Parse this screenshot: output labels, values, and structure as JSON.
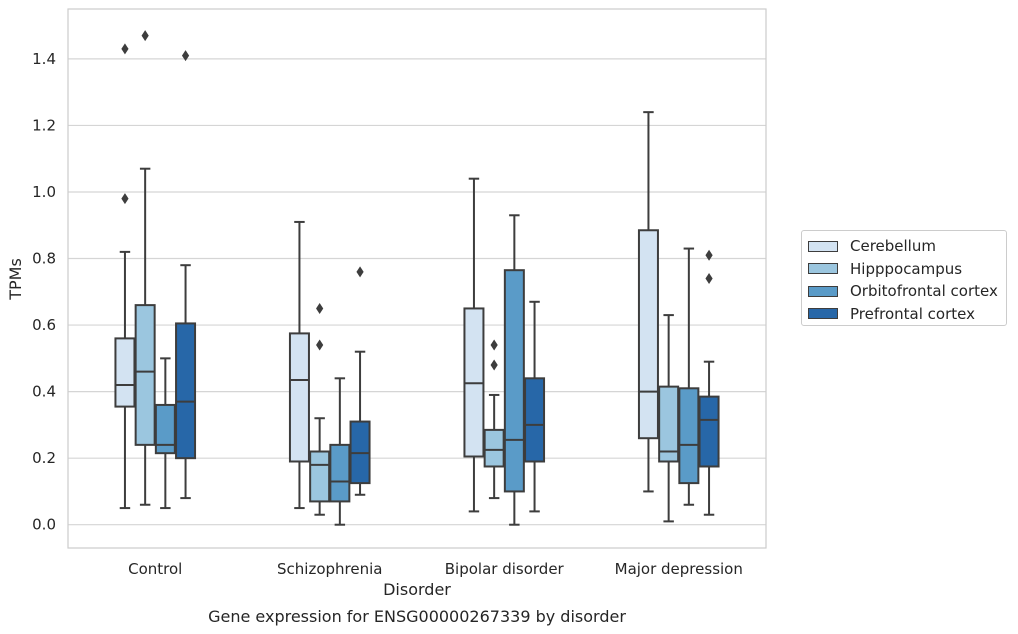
{
  "chart_data": {
    "type": "box",
    "title": "",
    "xlabel": "Disorder",
    "ylabel": "TPMs",
    "caption": "Gene expression for ENSG00000267339 by disorder",
    "ylim": [
      -0.07,
      1.55
    ],
    "yticks": [
      "0.0",
      "0.2",
      "0.4",
      "0.6",
      "0.8",
      "1.0",
      "1.2",
      "1.4"
    ],
    "categories": [
      "Control",
      "Schizophrenia",
      "Bipolar disorder",
      "Major depression"
    ],
    "legend_position": "right",
    "grid": "horizontal",
    "series": [
      {
        "name": "Cerebellum",
        "color": "#d3e3f2",
        "boxes": [
          {
            "whislo": 0.05,
            "q1": 0.355,
            "med": 0.42,
            "q3": 0.56,
            "whishi": 0.82,
            "fliers": [
              0.98,
              1.43
            ]
          },
          {
            "whislo": 0.05,
            "q1": 0.19,
            "med": 0.435,
            "q3": 0.575,
            "whishi": 0.91,
            "fliers": []
          },
          {
            "whislo": 0.04,
            "q1": 0.205,
            "med": 0.425,
            "q3": 0.65,
            "whishi": 1.04,
            "fliers": []
          },
          {
            "whislo": 0.1,
            "q1": 0.26,
            "med": 0.4,
            "q3": 0.885,
            "whishi": 1.24,
            "fliers": []
          }
        ]
      },
      {
        "name": "Hipppocampus",
        "color": "#9bc6df",
        "boxes": [
          {
            "whislo": 0.06,
            "q1": 0.24,
            "med": 0.46,
            "q3": 0.66,
            "whishi": 1.07,
            "fliers": [
              1.47
            ]
          },
          {
            "whislo": 0.03,
            "q1": 0.07,
            "med": 0.18,
            "q3": 0.22,
            "whishi": 0.32,
            "fliers": [
              0.54,
              0.65
            ]
          },
          {
            "whislo": 0.08,
            "q1": 0.175,
            "med": 0.225,
            "q3": 0.285,
            "whishi": 0.39,
            "fliers": [
              0.48,
              0.54
            ]
          },
          {
            "whislo": 0.01,
            "q1": 0.19,
            "med": 0.22,
            "q3": 0.415,
            "whishi": 0.63,
            "fliers": []
          }
        ]
      },
      {
        "name": "Orbitofrontal cortex",
        "color": "#5a9bc8",
        "boxes": [
          {
            "whislo": 0.05,
            "q1": 0.215,
            "med": 0.24,
            "q3": 0.36,
            "whishi": 0.5,
            "fliers": []
          },
          {
            "whislo": 0.0,
            "q1": 0.07,
            "med": 0.13,
            "q3": 0.24,
            "whishi": 0.44,
            "fliers": []
          },
          {
            "whislo": 0.0,
            "q1": 0.1,
            "med": 0.255,
            "q3": 0.765,
            "whishi": 0.93,
            "fliers": []
          },
          {
            "whislo": 0.06,
            "q1": 0.125,
            "med": 0.24,
            "q3": 0.41,
            "whishi": 0.83,
            "fliers": []
          }
        ]
      },
      {
        "name": "Prefrontal cortex",
        "color": "#2767a8",
        "boxes": [
          {
            "whislo": 0.08,
            "q1": 0.2,
            "med": 0.37,
            "q3": 0.605,
            "whishi": 0.78,
            "fliers": [
              1.41
            ]
          },
          {
            "whislo": 0.09,
            "q1": 0.125,
            "med": 0.215,
            "q3": 0.31,
            "whishi": 0.52,
            "fliers": [
              0.76
            ]
          },
          {
            "whislo": 0.04,
            "q1": 0.19,
            "med": 0.3,
            "q3": 0.44,
            "whishi": 0.67,
            "fliers": []
          },
          {
            "whislo": 0.03,
            "q1": 0.175,
            "med": 0.315,
            "q3": 0.385,
            "whishi": 0.49,
            "fliers": [
              0.74,
              0.81
            ]
          }
        ]
      }
    ]
  }
}
